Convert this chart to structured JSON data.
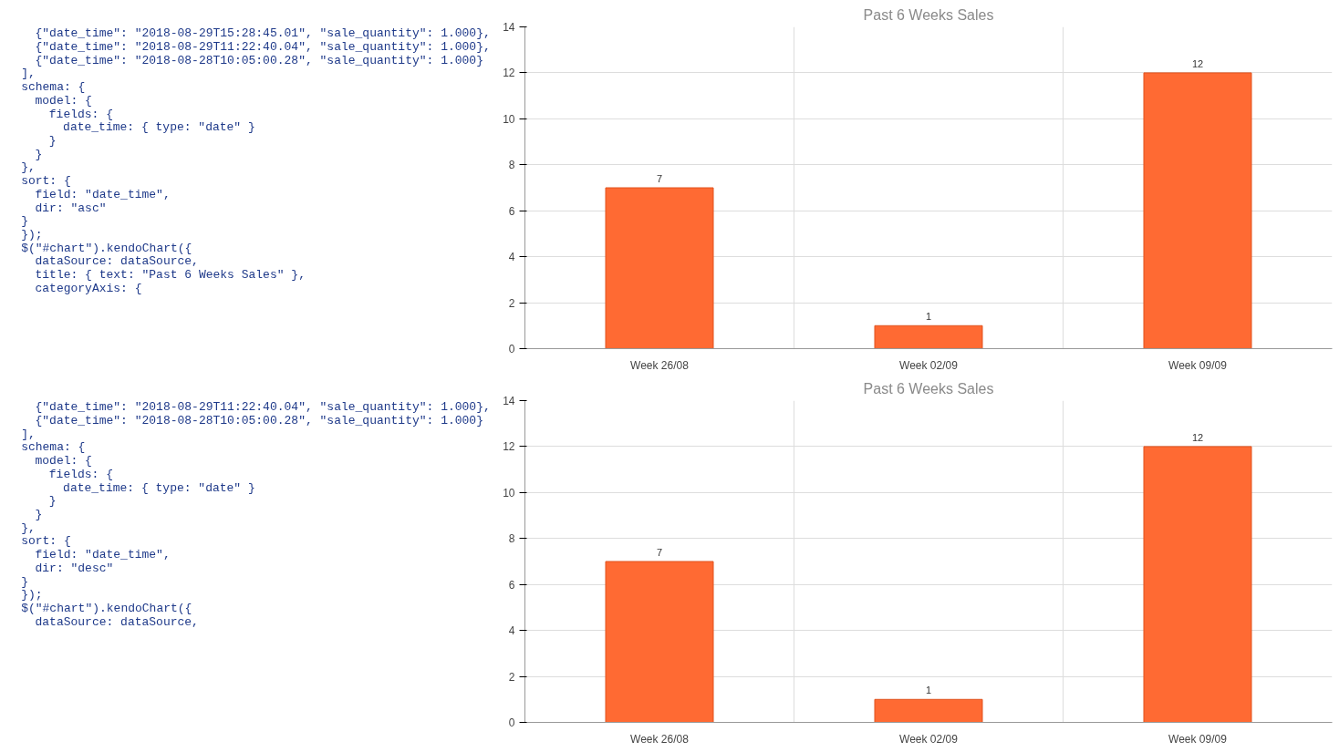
{
  "chart_data": [
    {
      "type": "bar",
      "title": "Past 6 Weeks Sales",
      "categories": [
        "Week 26/08",
        "Week 02/09",
        "Week 09/09"
      ],
      "values": [
        7,
        1,
        12
      ],
      "color": "#ff6a33",
      "ylim": [
        0,
        14
      ],
      "yticks": [
        0,
        2,
        4,
        6,
        8,
        10,
        12,
        14
      ],
      "grid": true,
      "data_labels": true,
      "annotations": [
        "  {\"date_time\": \"2018-08-29T15:28:45.01\", \"sale_quantity\": 1.000},",
        "  {\"date_time\": \"2018-08-29T11:22:40.04\", \"sale_quantity\": 1.000},",
        "  {\"date_time\": \"2018-08-28T10:05:00.28\", \"sale_quantity\": 1.000}",
        "],",
        "schema: {",
        "  model: {",
        "    fields: {",
        "      date_time: { type: \"date\" }",
        "    }",
        "  }",
        "},",
        "sort: {",
        "  field: \"date_time\",",
        "  dir: \"asc\"",
        "}",
        "});",
        "$(\"#chart\").kendoChart({",
        "  dataSource: dataSource,",
        "  title: { text: \"Past 6 Weeks Sales\" },",
        "  categoryAxis: {"
      ]
    },
    {
      "type": "bar",
      "title": "Past 6 Weeks Sales",
      "categories": [
        "Week 26/08",
        "Week 02/09",
        "Week 09/09"
      ],
      "values": [
        7,
        1,
        12
      ],
      "color": "#ff6a33",
      "ylim": [
        0,
        14
      ],
      "yticks": [
        0,
        2,
        4,
        6,
        8,
        10,
        12,
        14
      ],
      "grid": true,
      "data_labels": true,
      "annotations": [
        "  {\"date_time\": \"2018-08-29T11:22:40.04\", \"sale_quantity\": 1.000},",
        "  {\"date_time\": \"2018-08-28T10:05:00.28\", \"sale_quantity\": 1.000}",
        "],",
        "schema: {",
        "  model: {",
        "    fields: {",
        "      date_time: { type: \"date\" }",
        "    }",
        "  }",
        "},",
        "sort: {",
        "  field: \"date_time\",",
        "  dir: \"desc\"",
        "}",
        "});",
        "$(\"#chart\").kendoChart({",
        "  dataSource: dataSource,"
      ]
    }
  ]
}
